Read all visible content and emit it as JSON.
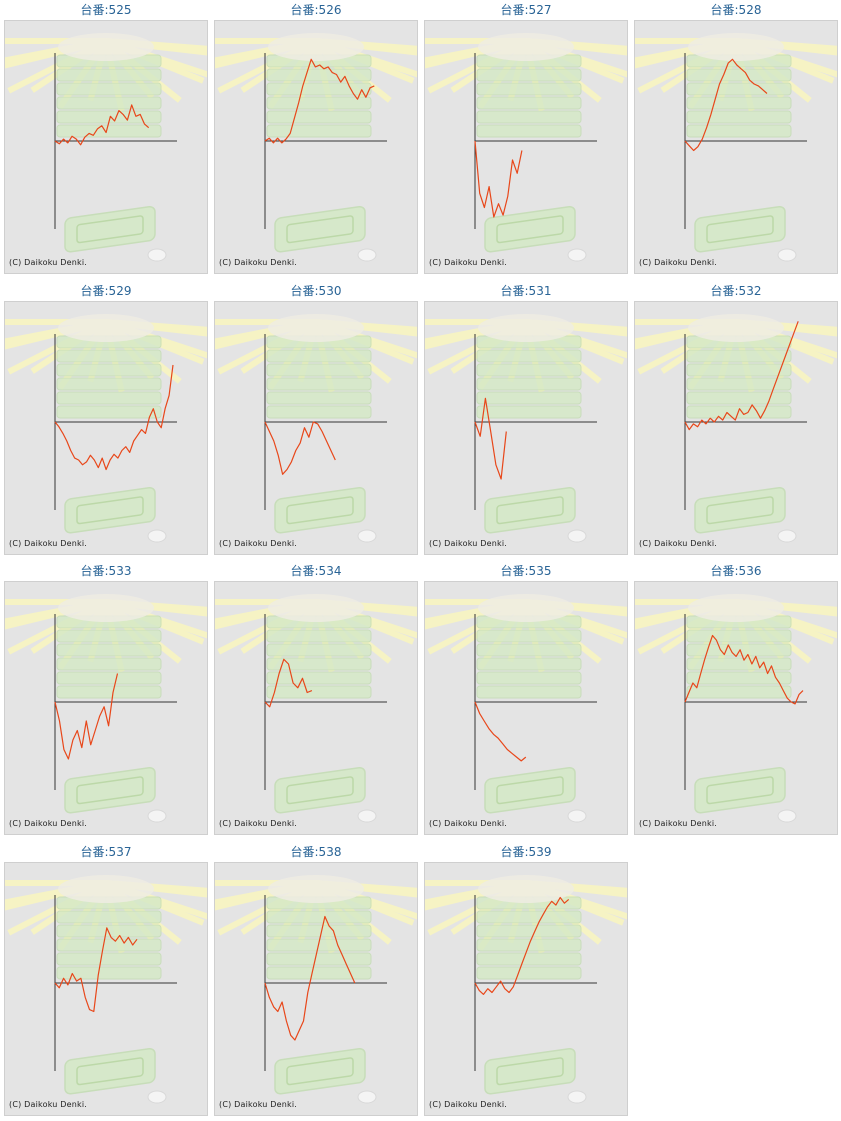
{
  "colors": {
    "line": "#e8471a",
    "axis": "#333333",
    "title": "#2a6496",
    "frame_bg": "#e4e4e4",
    "rays": "#f6f3c4",
    "machine": "#d4e9c6"
  },
  "copyright": "(C) Daikoku Denki.",
  "icons": [
    "pachinko-machine-background",
    "rays-background",
    "tray-icon",
    "coin-icon"
  ],
  "chart_data": [
    {
      "type": "line",
      "title": "台番:525",
      "x": [
        0,
        1,
        2,
        3,
        4,
        5,
        6,
        7,
        8,
        9,
        10,
        11,
        12,
        13,
        14,
        15,
        16,
        17,
        18,
        19,
        20,
        21,
        22
      ],
      "values": [
        0,
        -3,
        2,
        -2,
        5,
        2,
        -4,
        4,
        8,
        6,
        13,
        16,
        9,
        26,
        21,
        32,
        28,
        22,
        38,
        26,
        28,
        18,
        14
      ]
    },
    {
      "type": "line",
      "title": "台番:526",
      "x": [
        0,
        1,
        2,
        3,
        4,
        5,
        6,
        7,
        8,
        9,
        10,
        11,
        12,
        13,
        14,
        15,
        16,
        17,
        18,
        19,
        20,
        21,
        22,
        23,
        24,
        25,
        26
      ],
      "values": [
        0,
        3,
        -2,
        3,
        -2,
        2,
        8,
        24,
        40,
        58,
        72,
        86,
        78,
        80,
        76,
        78,
        72,
        70,
        62,
        68,
        58,
        50,
        44,
        54,
        46,
        56,
        58
      ]
    },
    {
      "type": "line",
      "title": "台番:527",
      "x": [
        0,
        1,
        2,
        3,
        4,
        5,
        6,
        7,
        8,
        9,
        10
      ],
      "values": [
        0,
        -55,
        -70,
        -48,
        -80,
        -66,
        -78,
        -58,
        -20,
        -34,
        -10
      ]
    },
    {
      "type": "line",
      "title": "台番:528",
      "x": [
        0,
        1,
        2,
        3,
        4,
        5,
        6,
        7,
        8,
        9,
        10,
        11,
        12,
        13,
        14,
        15,
        16,
        17,
        18,
        19
      ],
      "values": [
        0,
        -5,
        -10,
        -6,
        2,
        14,
        28,
        44,
        60,
        70,
        82,
        86,
        80,
        76,
        72,
        64,
        60,
        58,
        54,
        50
      ]
    },
    {
      "type": "line",
      "title": "台番:529",
      "x": [
        0,
        1,
        2,
        3,
        4,
        5,
        6,
        7,
        8,
        9,
        10,
        11,
        12,
        13,
        14,
        15,
        16,
        17,
        18,
        19,
        20,
        21,
        22,
        23,
        24,
        25,
        26,
        27,
        28,
        29,
        30
      ],
      "values": [
        0,
        -5,
        -12,
        -20,
        -30,
        -38,
        -40,
        -45,
        -42,
        -35,
        -40,
        -48,
        -38,
        -50,
        -40,
        -34,
        -38,
        -30,
        -26,
        -32,
        -20,
        -14,
        -8,
        -12,
        5,
        14,
        0,
        -6,
        14,
        28,
        60
      ]
    },
    {
      "type": "line",
      "title": "台番:530",
      "x": [
        0,
        1,
        2,
        3,
        4,
        5,
        6,
        7,
        8,
        9,
        10,
        11,
        12,
        13,
        14,
        15,
        16
      ],
      "values": [
        0,
        -10,
        -20,
        -35,
        -55,
        -50,
        -42,
        -30,
        -22,
        -6,
        -16,
        0,
        -2,
        -10,
        -20,
        -30,
        -40
      ]
    },
    {
      "type": "line",
      "title": "台番:531",
      "x": [
        0,
        1,
        2,
        3,
        4,
        5,
        6
      ],
      "values": [
        0,
        -15,
        25,
        -10,
        -45,
        -60,
        -10
      ]
    },
    {
      "type": "line",
      "title": "台番:532",
      "x": [
        0,
        1,
        2,
        3,
        4,
        5,
        6,
        7,
        8,
        9,
        10,
        11,
        12,
        13,
        14,
        15,
        16,
        17,
        18,
        19,
        20,
        21,
        22,
        23,
        24,
        25,
        26,
        27
      ],
      "values": [
        0,
        -8,
        -2,
        -5,
        2,
        -2,
        4,
        0,
        6,
        2,
        10,
        6,
        2,
        14,
        8,
        10,
        18,
        12,
        4,
        12,
        22,
        34,
        46,
        58,
        70,
        82,
        94,
        106
      ]
    },
    {
      "type": "line",
      "title": "台番:533",
      "x": [
        0,
        1,
        2,
        3,
        4,
        5,
        6,
        7,
        8,
        9,
        10,
        11,
        12,
        13,
        14
      ],
      "values": [
        0,
        -20,
        -50,
        -60,
        -40,
        -30,
        -48,
        -20,
        -45,
        -30,
        -15,
        -5,
        -25,
        10,
        30
      ]
    },
    {
      "type": "line",
      "title": "台番:534",
      "x": [
        0,
        1,
        2,
        3,
        4,
        5,
        6,
        7,
        8,
        9,
        10
      ],
      "values": [
        0,
        -5,
        10,
        30,
        45,
        40,
        20,
        15,
        25,
        10,
        12
      ]
    },
    {
      "type": "line",
      "title": "台番:535",
      "x": [
        0,
        1,
        2,
        3,
        4,
        5,
        6,
        7,
        8,
        9,
        10,
        11
      ],
      "values": [
        0,
        -12,
        -20,
        -28,
        -34,
        -38,
        -44,
        -50,
        -54,
        -58,
        -62,
        -58
      ]
    },
    {
      "type": "line",
      "title": "台番:536",
      "x": [
        0,
        1,
        2,
        3,
        4,
        5,
        6,
        7,
        8,
        9,
        10,
        11,
        12,
        13,
        14,
        15,
        16,
        17,
        18,
        19,
        20,
        21,
        22,
        23,
        24,
        25,
        26,
        27,
        28,
        29,
        30
      ],
      "values": [
        0,
        10,
        20,
        15,
        30,
        45,
        58,
        70,
        65,
        55,
        50,
        60,
        52,
        48,
        55,
        44,
        50,
        40,
        48,
        36,
        42,
        30,
        38,
        26,
        20,
        12,
        4,
        0,
        -2,
        8,
        12
      ]
    },
    {
      "type": "line",
      "title": "台番:537",
      "x": [
        0,
        1,
        2,
        3,
        4,
        5,
        6,
        7,
        8,
        9,
        10,
        11,
        12,
        13,
        14,
        15,
        16,
        17,
        18,
        19
      ],
      "values": [
        0,
        -5,
        5,
        -2,
        10,
        2,
        5,
        -15,
        -28,
        -30,
        8,
        34,
        58,
        48,
        44,
        50,
        42,
        48,
        40,
        46
      ]
    },
    {
      "type": "line",
      "title": "台番:538",
      "x": [
        0,
        1,
        2,
        3,
        4,
        5,
        6,
        7,
        8,
        9,
        10,
        11,
        12,
        13,
        14,
        15,
        16,
        17,
        18,
        19,
        20,
        21
      ],
      "values": [
        0,
        -15,
        -25,
        -30,
        -20,
        -40,
        -55,
        -60,
        -50,
        -40,
        -10,
        10,
        30,
        50,
        70,
        60,
        55,
        40,
        30,
        20,
        10,
        0
      ]
    },
    {
      "type": "line",
      "title": "台番:539",
      "x": [
        0,
        1,
        2,
        3,
        4,
        5,
        6,
        7,
        8,
        9,
        10,
        11,
        12,
        13,
        14,
        15,
        16,
        17,
        18,
        19,
        20,
        21,
        22
      ],
      "values": [
        0,
        -8,
        -12,
        -6,
        -10,
        -4,
        2,
        -6,
        -10,
        -4,
        8,
        20,
        32,
        44,
        54,
        64,
        72,
        80,
        86,
        82,
        90,
        84,
        88
      ]
    }
  ]
}
